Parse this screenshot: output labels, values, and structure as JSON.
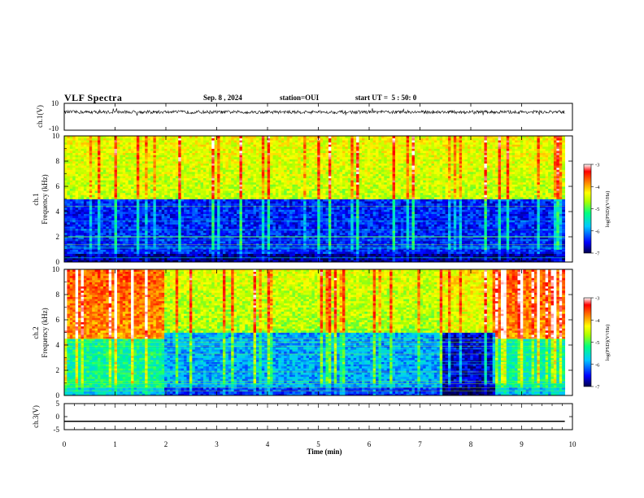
{
  "header": {
    "title": "VLF Spectra",
    "date": "Sep. 8 , 2024",
    "station": "station=OUI",
    "start": "start UT =  5 : 50: 0"
  },
  "colors": {
    "spectrum_colormap": [
      "#00007a",
      "#0000ff",
      "#00c8ff",
      "#00ff80",
      "#aaff00",
      "#ffff00",
      "#ff8000",
      "#ff0000",
      "#ffffff"
    ],
    "waveform": "#000000"
  },
  "chart_data": [
    {
      "type": "line",
      "name": "ch1_waveform",
      "ylabel": "ch.1(V)",
      "ylim": [
        -10,
        10
      ],
      "ytick_labels": [
        "10",
        "-10"
      ],
      "x_range_min": [
        0,
        9.85
      ],
      "baseline_value": 3.5,
      "noise_amplitude": 1.2
    },
    {
      "type": "heatmap",
      "name": "ch1_spectrogram",
      "ylabel": "ch.1\nFrequency (kHz)",
      "ylabel_line1": "ch.1",
      "ylabel_line2": "Frequency (kHz)",
      "ylim": [
        0,
        10
      ],
      "ytick_labels": [
        "0",
        "2",
        "4",
        "6",
        "8",
        "10"
      ],
      "x_range_min": [
        0,
        9.85
      ],
      "colorbar": {
        "label": "log(PSD)(V²/Hz)",
        "range": [
          -7,
          -3
        ],
        "tick_labels": [
          "-7",
          "-6",
          "-5",
          "-4",
          "-3"
        ]
      },
      "segments": [
        {
          "t_start": 0.0,
          "t_end": 9.85,
          "cutoff_khz": 5.0,
          "low_level": -6.4,
          "high_level": -4.6
        }
      ]
    },
    {
      "type": "heatmap",
      "name": "ch2_spectrogram",
      "ylabel_line1": "ch.2",
      "ylabel_line2": "Frequency (kHz)",
      "ylim": [
        0,
        10
      ],
      "ytick_labels": [
        "0",
        "2",
        "4",
        "6",
        "8",
        "10"
      ],
      "x_range_min": [
        0,
        9.85
      ],
      "colorbar": {
        "label": "log(PSD)(V²/Hz)",
        "range": [
          -7,
          -3
        ],
        "tick_labels": [
          "-7",
          "-6",
          "-5",
          "-4",
          "-3"
        ]
      },
      "segments": [
        {
          "t_start": 0.0,
          "t_end": 1.95,
          "cutoff_khz": 4.5,
          "low_level": -5.3,
          "high_level": -3.9
        },
        {
          "t_start": 1.95,
          "t_end": 7.45,
          "cutoff_khz": 5.0,
          "low_level": -5.9,
          "high_level": -4.7
        },
        {
          "t_start": 7.45,
          "t_end": 8.5,
          "cutoff_khz": 5.0,
          "low_level": -6.6,
          "high_level": -4.5
        },
        {
          "t_start": 8.5,
          "t_end": 9.85,
          "cutoff_khz": 4.5,
          "low_level": -5.4,
          "high_level": -3.9
        }
      ]
    },
    {
      "type": "line",
      "name": "ch3_waveform",
      "ylabel": "ch.3(V)",
      "ylim": [
        -5,
        5
      ],
      "ytick_labels": [
        "5",
        "0",
        "-5"
      ],
      "x_range_min": [
        0,
        9.85
      ],
      "constant_value": -1.8
    }
  ],
  "xaxis": {
    "label": "Time (min)",
    "range": [
      0,
      10
    ],
    "tick_labels": [
      "0",
      "1",
      "2",
      "3",
      "4",
      "5",
      "6",
      "7",
      "8",
      "9",
      "10"
    ]
  }
}
